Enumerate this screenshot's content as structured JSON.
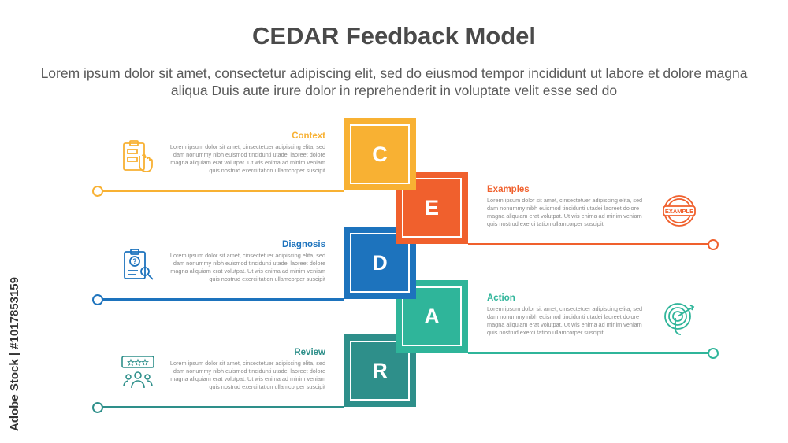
{
  "title": "CEDAR Feedback Model",
  "subtitle": "Lorem ipsum dolor sit amet, consectetur adipiscing elit, sed do eiusmod tempor incididunt ut labore et dolore magna aliqua Duis aute irure dolor in reprehenderit in voluptate velit esse sed do",
  "watermark": "Adobe Stock | #1017853159",
  "steps": [
    {
      "letter": "C",
      "label": "Context",
      "color": "#F8B133",
      "icon": "clipboard-hand-icon",
      "body": "Lorem ipsum dolor sit amet, cinsectetuer adipiscing elita, sed dam nonummy nibh euismod tincidunti utadei laoreet dolore magna aliquiam erat volutpat. Ut wis enima ad minim veniam quis nostrud exerci tation ullamcorper suscipit"
    },
    {
      "letter": "E",
      "label": "Examples",
      "color": "#F0602D",
      "icon": "example-stamp-icon",
      "icon_text": "EXAMPLE",
      "body": "Lorem ipsum dolor sit amet, cinsectetuer adipiscing elita, sed dam nonummy nibh euismod tincidunti utadei laoreet dolore magna aliquiam erat volutpat. Ut wis enima ad minim veniam quis nostrud exerci tation ullamcorper suscipit"
    },
    {
      "letter": "D",
      "label": "Diagnosis",
      "color": "#1D73BD",
      "icon": "clipboard-question-icon",
      "body": "Lorem ipsum dolor sit amet, cinsectetuer adipiscing elita, sed dam nonummy nibh euismod tincidunti utadei laoreet dolore magna aliquiam erat volutpat. Ut wis enima ad minim veniam quis nostrud exerci tation ullamcorper suscipit"
    },
    {
      "letter": "A",
      "label": "Action",
      "color": "#2FB59A",
      "icon": "target-touch-icon",
      "body": "Lorem ipsum dolor sit amet, cinsectetuer adipiscing elita, sed dam nonummy nibh euismod tincidunti utadei laoreet dolore magna aliquiam erat volutpat. Ut wis enima ad minim veniam quis nostrud exerci tation ullamcorper suscipit"
    },
    {
      "letter": "R",
      "label": "Review",
      "color": "#2E8F8A",
      "icon": "review-stars-people-icon",
      "body": "Lorem ipsum dolor sit amet, cinsectetuer adipiscing elita, sed dam nonummy nibh euismod tincidunti utadei laoreet dolore magna aliquiam erat volutpat. Ut wis enima ad minim veniam quis nostrud exerci tation ullamcorper suscipit"
    }
  ]
}
